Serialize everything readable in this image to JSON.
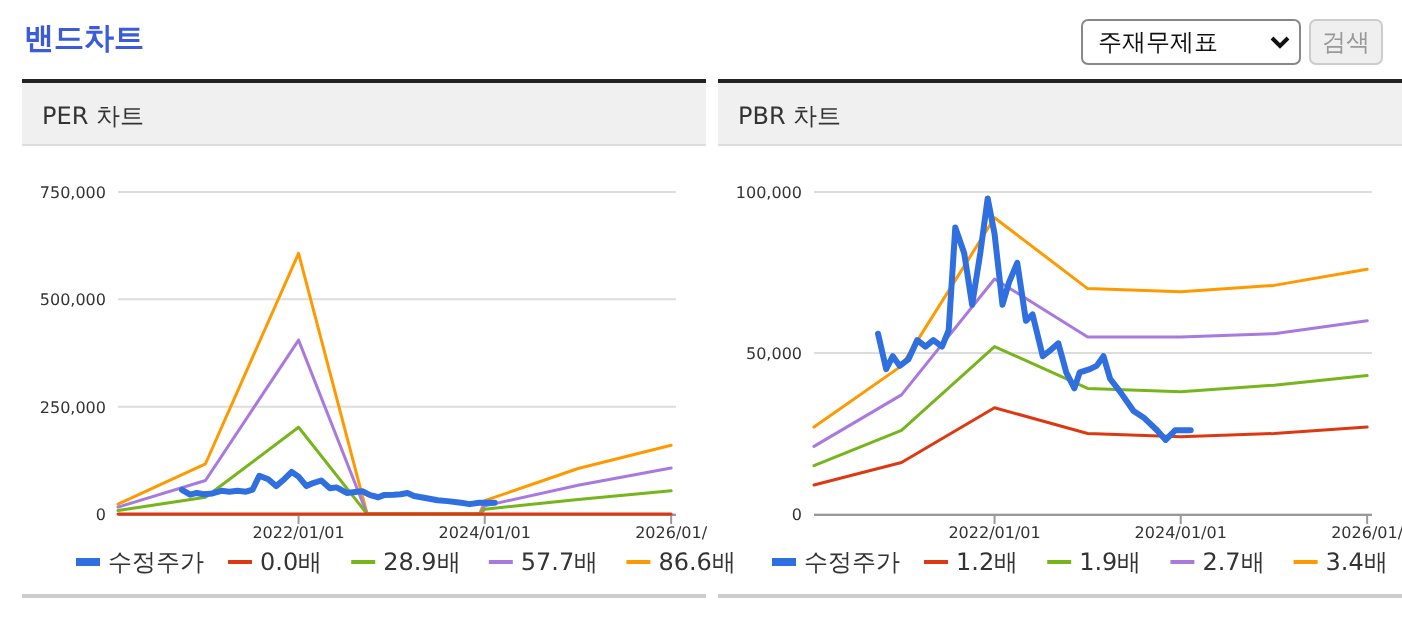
{
  "chart_data": [
    {
      "type": "other",
      "title": "밴드차트",
      "annotations": [
        "주재무제표",
        "검색"
      ]
    },
    {
      "type": "line",
      "title": "PER 차트",
      "xlim": [
        "2020-01-24",
        "2026-01-20"
      ],
      "xticks": [
        {
          "value": "2022-01-01",
          "label": "2022/01/01"
        },
        {
          "value": "2024-01-01",
          "label": "2024/01/01"
        },
        {
          "value": "2026-01-01",
          "label": "2026/01/"
        }
      ],
      "ylim": [
        0,
        750000
      ],
      "yticks": [
        {
          "value": 0,
          "label": "0"
        },
        {
          "value": 250000,
          "label": "250,000"
        },
        {
          "value": 500000,
          "label": "500,000"
        },
        {
          "value": 750000,
          "label": "750,000"
        }
      ],
      "grid": "y",
      "legend": "bottom",
      "series": [
        {
          "name": "수정주가",
          "color": "#2f6fdf",
          "x": [
            "2020-10-01",
            "2020-11-02",
            "2020-11-28",
            "2020-12-25",
            "2021-01-28",
            "2021-03-04",
            "2021-04-05",
            "2021-05-06",
            "2021-06-09",
            "2021-07-05",
            "2021-07-31",
            "2021-09-04",
            "2021-10-05",
            "2021-11-06",
            "2021-12-05",
            "2022-01-01",
            "2022-02-01",
            "2022-02-27",
            "2022-03-31",
            "2022-05-04",
            "2022-05-30",
            "2022-07-09",
            "2022-08-10",
            "2022-09-08",
            "2022-10-09",
            "2022-11-10",
            "2022-12-01",
            "2023-01-10",
            "2023-02-05",
            "2023-03-04",
            "2023-03-30",
            "2023-05-08",
            "2023-06-30",
            "2023-08-08",
            "2023-09-30",
            "2023-11-03",
            "2023-12-10",
            "2024-01-08",
            "2024-02-09"
          ],
          "values": [
            56000,
            45000,
            49000,
            46000,
            48000,
            54000,
            52000,
            54000,
            52000,
            57000,
            89000,
            81000,
            65000,
            81000,
            98000,
            87000,
            65000,
            72000,
            78000,
            60000,
            62000,
            49000,
            51000,
            53000,
            44000,
            39000,
            44000,
            45000,
            46000,
            49000,
            42000,
            38000,
            32000,
            30000,
            26000,
            23000,
            26000,
            26000,
            26000
          ]
        },
        {
          "name": "0.0배",
          "color": "#dc3912",
          "x": [
            "2020-01-24",
            "2021-01-01",
            "2022-01-01",
            "2022-09-27",
            "2023-12-12",
            "2024-01-01",
            "2025-01-01",
            "2026-01-01"
          ],
          "values": [
            0,
            0,
            0,
            0,
            0,
            0,
            0,
            0
          ]
        },
        {
          "name": "28.9배",
          "color": "#76b51b",
          "x": [
            "2020-01-24",
            "2021-01-01",
            "2022-01-01",
            "2022-09-27",
            "2023-12-12",
            "2024-01-01",
            "2025-01-01",
            "2026-01-01"
          ],
          "values": [
            8000,
            39000,
            202000,
            0,
            0,
            11000,
            34000,
            54000
          ]
        },
        {
          "name": "57.7배",
          "color": "#a879de",
          "x": [
            "2020-01-24",
            "2021-01-01",
            "2022-01-01",
            "2022-09-27",
            "2023-12-12",
            "2024-01-01",
            "2025-01-01",
            "2026-01-01"
          ],
          "values": [
            16000,
            78000,
            405000,
            0,
            0,
            19000,
            67000,
            107000
          ]
        },
        {
          "name": "86.6배",
          "color": "#ff9900",
          "x": [
            "2020-01-24",
            "2021-01-01",
            "2022-01-01",
            "2022-09-27",
            "2023-12-12",
            "2024-01-01",
            "2025-01-01",
            "2026-01-01"
          ],
          "values": [
            23000,
            117000,
            607000,
            0,
            0,
            31000,
            106000,
            160000
          ]
        }
      ]
    },
    {
      "type": "line",
      "title": "PBR 차트",
      "xlim": [
        "2020-01-24",
        "2026-01-20"
      ],
      "xticks": [
        {
          "value": "2022-01-01",
          "label": "2022/01/01"
        },
        {
          "value": "2024-01-01",
          "label": "2024/01/01"
        },
        {
          "value": "2026-01-01",
          "label": "2026/01/"
        }
      ],
      "ylim": [
        0,
        100000
      ],
      "yticks": [
        {
          "value": 0,
          "label": "0"
        },
        {
          "value": 50000,
          "label": "50,000"
        },
        {
          "value": 100000,
          "label": "100,000"
        }
      ],
      "grid": "y",
      "legend": "bottom",
      "series": [
        {
          "name": "수정주가",
          "color": "#2f6fdf",
          "x": [
            "2020-10-01",
            "2020-11-02",
            "2020-11-28",
            "2020-12-25",
            "2021-01-28",
            "2021-03-04",
            "2021-04-05",
            "2021-05-06",
            "2021-06-09",
            "2021-07-05",
            "2021-07-31",
            "2021-09-04",
            "2021-10-05",
            "2021-11-06",
            "2021-12-05",
            "2022-01-01",
            "2022-02-01",
            "2022-02-27",
            "2022-03-31",
            "2022-05-04",
            "2022-05-30",
            "2022-07-09",
            "2022-08-10",
            "2022-09-08",
            "2022-10-09",
            "2022-11-10",
            "2022-12-01",
            "2023-01-10",
            "2023-02-05",
            "2023-03-04",
            "2023-03-30",
            "2023-05-08",
            "2023-06-30",
            "2023-08-08",
            "2023-09-30",
            "2023-11-03",
            "2023-12-10",
            "2024-01-08",
            "2024-02-09"
          ],
          "values": [
            56000,
            45000,
            49000,
            46000,
            48000,
            54000,
            52000,
            54000,
            52000,
            57000,
            89000,
            81000,
            65000,
            81000,
            98000,
            87000,
            65000,
            72000,
            78000,
            60000,
            62000,
            49000,
            51000,
            53000,
            44000,
            39000,
            44000,
            45000,
            46000,
            49000,
            42000,
            38000,
            32000,
            30000,
            26000,
            23000,
            26000,
            26000,
            26000
          ]
        },
        {
          "name": "1.2배",
          "color": "#dc3912",
          "x": [
            "2020-01-24",
            "2021-01-01",
            "2022-01-01",
            "2023-01-01",
            "2024-01-01",
            "2025-01-01",
            "2026-01-01"
          ],
          "values": [
            9000,
            16000,
            33000,
            25000,
            24000,
            25000,
            27000
          ]
        },
        {
          "name": "1.9배",
          "color": "#76b51b",
          "x": [
            "2020-01-24",
            "2021-01-01",
            "2022-01-01",
            "2023-01-01",
            "2024-01-01",
            "2025-01-01",
            "2026-01-01"
          ],
          "values": [
            15000,
            26000,
            52000,
            39000,
            38000,
            40000,
            43000
          ]
        },
        {
          "name": "2.7배",
          "color": "#a879de",
          "x": [
            "2020-01-24",
            "2021-01-01",
            "2022-01-01",
            "2023-01-01",
            "2024-01-01",
            "2025-01-01",
            "2026-01-01"
          ],
          "values": [
            21000,
            37000,
            73000,
            55000,
            55000,
            56000,
            60000
          ]
        },
        {
          "name": "3.4배",
          "color": "#ff9900",
          "x": [
            "2020-01-24",
            "2021-01-01",
            "2022-01-01",
            "2023-01-01",
            "2024-01-01",
            "2025-01-01",
            "2026-01-01"
          ],
          "values": [
            27000,
            46000,
            92000,
            70000,
            69000,
            71000,
            76000
          ]
        }
      ]
    }
  ]
}
